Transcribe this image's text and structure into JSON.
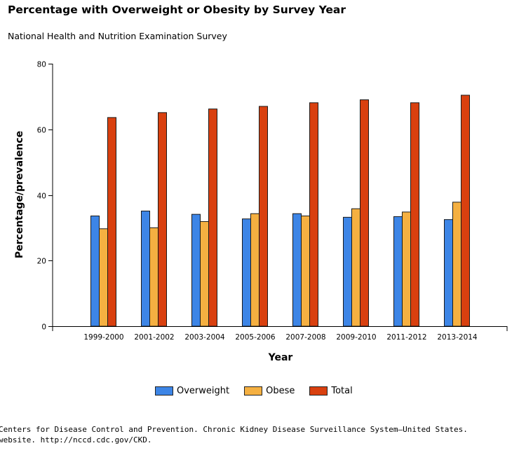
{
  "chart_data": {
    "type": "bar",
    "title": "Percentage with Overweight or Obesity by Survey Year",
    "subtitle": "National Health and Nutrition Examination Survey",
    "xlabel": "Year",
    "ylabel": "Percentage/prevalence",
    "ylim": [
      0,
      80
    ],
    "yticks": [
      "0",
      "20",
      "40",
      "60",
      "80"
    ],
    "grid": false,
    "legend_position": "bottom",
    "categories": [
      "1999-2000",
      "2001-2002",
      "2003-2004",
      "2005-2006",
      "2007-2008",
      "2009-2010",
      "2011-2012",
      "2013-2014"
    ],
    "series": [
      {
        "name": "Overweight",
        "color": "#3d85e6",
        "values": [
          33.6,
          35.1,
          34.1,
          32.7,
          34.3,
          33.2,
          33.4,
          32.5
        ]
      },
      {
        "name": "Obese",
        "color": "#f5b041",
        "values": [
          29.7,
          30.0,
          31.9,
          34.3,
          33.6,
          35.8,
          34.8,
          37.8
        ]
      },
      {
        "name": "Total",
        "color": "#d9400f",
        "values": [
          63.6,
          65.1,
          66.2,
          67.0,
          68.1,
          69.0,
          68.1,
          70.4
        ]
      }
    ]
  },
  "source_text": [
    "Centers for Disease Control and Prevention. Chronic Kidney Disease Surveillance System—United States.",
    "website. http://nccd.cdc.gov/CKD."
  ]
}
